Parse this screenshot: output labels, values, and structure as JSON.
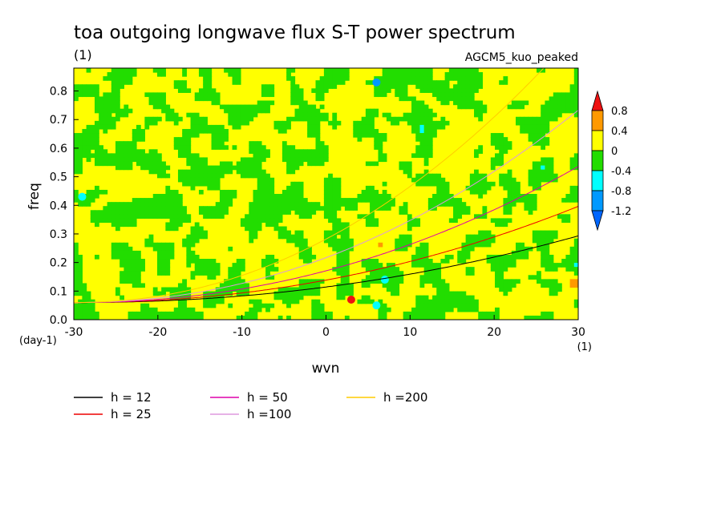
{
  "chart_data": {
    "type": "heatmap",
    "title": "toa outgoing longwave flux S-T power spectrum",
    "title_units": "(1)",
    "model_label": "AGCM5_kuo_peaked",
    "xlabel": "wvn",
    "x_units": "(1)",
    "ylabel": "freq",
    "y_units": "(day-1)",
    "xlim": [
      -30,
      30
    ],
    "ylim": [
      0,
      0.88
    ],
    "x_ticks": [
      "-30",
      "-20",
      "-10",
      "0",
      "10",
      "20",
      "30"
    ],
    "x_tick_values": [
      -30,
      -20,
      -10,
      0,
      10,
      20,
      30
    ],
    "y_ticks": [
      "0.0",
      "0.1",
      "0.2",
      "0.3",
      "0.4",
      "0.5",
      "0.6",
      "0.7",
      "0.8"
    ],
    "y_tick_values": [
      0,
      0.1,
      0.2,
      0.3,
      0.4,
      0.5,
      0.6,
      0.7,
      0.8
    ],
    "colorbar": {
      "labels": [
        "0.8",
        "0.4",
        "0",
        "-0.4",
        "-0.8",
        "-1.2"
      ],
      "label_values": [
        0.8,
        0.4,
        0,
        -0.4,
        -0.8,
        -1.2
      ],
      "bins": [
        {
          "range": "> 0.8",
          "color": "#ee1111"
        },
        {
          "range": "0.4 to 0.8",
          "color": "#ff9900"
        },
        {
          "range": "0 to 0.4",
          "color": "#ffff00"
        },
        {
          "range": "-0.4 to 0",
          "color": "#22dd00"
        },
        {
          "range": "-0.8 to -0.4",
          "color": "#00ffff"
        },
        {
          "range": "-1.2 to -0.8",
          "color": "#0099ff"
        },
        {
          "range": "< -1.2",
          "color": "#0066ff"
        }
      ]
    },
    "field_description_values": {
      "dominant_bins": [
        "0 to 0.4",
        "-0.4 to 0"
      ],
      "sparse_bins": [
        "0.4 to 0.8",
        "-0.8 to -0.4",
        "-1.2 to -0.8",
        "> 0.8"
      ]
    },
    "series": [
      {
        "name": "h = 12",
        "color": "#000000",
        "equivalent_depth": 12
      },
      {
        "name": "h = 25",
        "color": "#ee0000",
        "equivalent_depth": 25
      },
      {
        "name": "h = 50",
        "color": "#dd00aa",
        "equivalent_depth": 50
      },
      {
        "name": "h =100",
        "color": "#dd99dd",
        "equivalent_depth": 100
      },
      {
        "name": "h =200",
        "color": "#ffcc00",
        "equivalent_depth": 200
      }
    ]
  }
}
